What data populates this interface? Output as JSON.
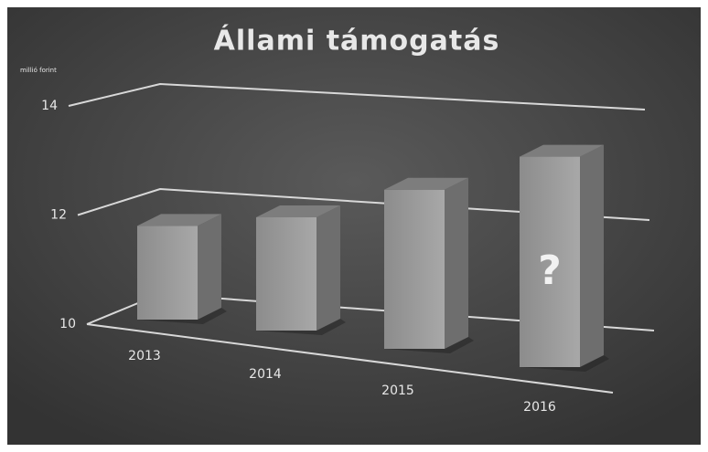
{
  "chart_data": {
    "type": "bar3d",
    "title": "Állami támogatás",
    "y_label": "millió forint",
    "categories": [
      "2013",
      "2014",
      "2015",
      "2016"
    ],
    "values": [
      11.8,
      12.0,
      12.6,
      13.2
    ],
    "color": "#9a9a9a",
    "ylim": [
      10,
      14
    ],
    "yticks": [
      10,
      12,
      14
    ],
    "grid": true,
    "annotation": "?"
  }
}
